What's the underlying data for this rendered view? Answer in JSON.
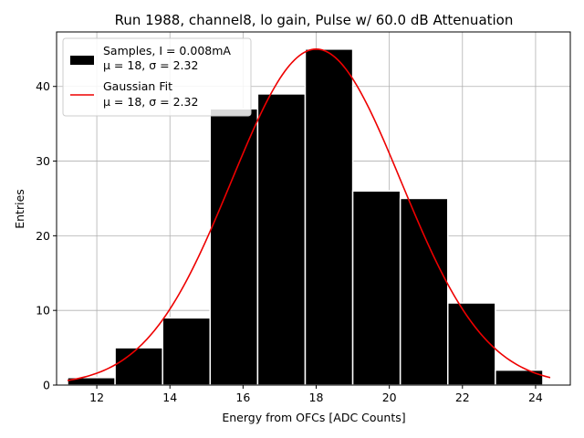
{
  "chart_data": {
    "type": "bar",
    "title": "Run 1988, channel8, lo gain, Pulse w/ 60.0 dB Attenuation",
    "xlabel": "Energy from OFCs [ADC Counts]",
    "ylabel": "Entries",
    "xlim": [
      10.9,
      24.95
    ],
    "ylim": [
      0,
      47.3
    ],
    "xticks": [
      12,
      14,
      16,
      18,
      20,
      22,
      24
    ],
    "yticks": [
      0,
      10,
      20,
      30,
      40
    ],
    "grid": true,
    "histogram": {
      "name": "Samples, I = 0.008mA",
      "color": "#000000",
      "bins": [
        {
          "x0": 11.2,
          "x1": 12.5,
          "count": 1
        },
        {
          "x0": 12.5,
          "x1": 13.8,
          "count": 5
        },
        {
          "x0": 13.8,
          "x1": 15.1,
          "count": 9
        },
        {
          "x0": 15.1,
          "x1": 16.4,
          "count": 37
        },
        {
          "x0": 16.4,
          "x1": 17.7,
          "count": 39
        },
        {
          "x0": 17.7,
          "x1": 19.0,
          "count": 45
        },
        {
          "x0": 19.0,
          "x1": 20.3,
          "count": 26
        },
        {
          "x0": 20.3,
          "x1": 21.6,
          "count": 25
        },
        {
          "x0": 21.6,
          "x1": 22.9,
          "count": 11
        },
        {
          "x0": 22.9,
          "x1": 24.2,
          "count": 2
        }
      ]
    },
    "fit": {
      "name": "Gaussian Fit",
      "color": "#ee0000",
      "mu": 18.0,
      "sigma": 2.32,
      "amplitude": 45,
      "x_range": [
        11.2,
        24.4
      ]
    },
    "legend": {
      "position": "top-left",
      "entries": [
        {
          "label": "Samples, I = 0.008mA",
          "sublabel": "μ = 18, σ = 2.32",
          "kind": "patch",
          "color": "#000000"
        },
        {
          "label": "Gaussian Fit",
          "sublabel": "μ = 18, σ = 2.32",
          "kind": "line",
          "color": "#ee0000"
        }
      ]
    }
  }
}
